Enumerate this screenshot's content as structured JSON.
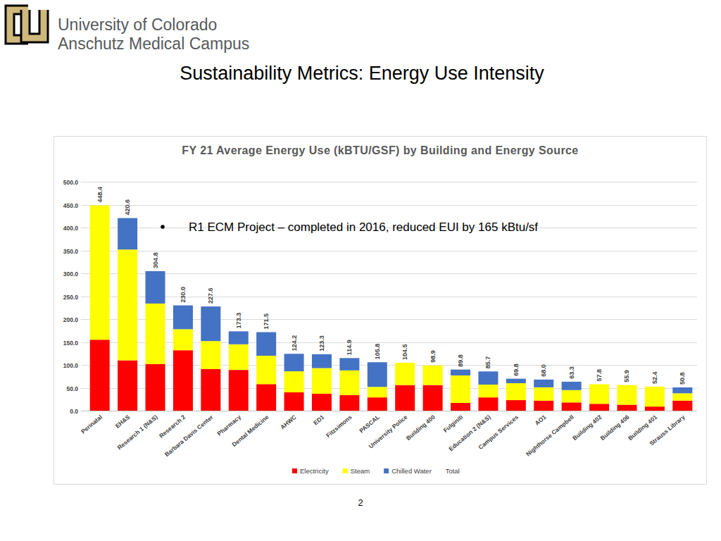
{
  "header": {
    "institution": [
      "University of Colorado",
      "Anschutz Medical Campus"
    ],
    "title": "Sustainability Metrics: Energy Use Intensity",
    "page_number": "2"
  },
  "chart_data": {
    "type": "bar",
    "stacked": true,
    "title": "FY 21 Average Energy Use (kBTU/GSF) by Building and Energy Source",
    "annotations": [
      "R1 ECM Project – completed in 2016, reduced EUI by 165 kBtu/sf"
    ],
    "categories": [
      "Perinatal",
      "EH&S",
      "Research 1 (N&S)",
      "Research 2",
      "Barbara Davis Center",
      "Pharmacy",
      "Dental Medicine",
      "AHWC",
      "ED1",
      "Fitzsimons",
      "PASCAL",
      "University Police",
      "Building 400",
      "Fulginiti",
      "Education 2 (N&S)",
      "Campus Services",
      "AO1",
      "Nighthorse Campbell",
      "Building 402",
      "Building 406",
      "Building 401",
      "Strauss Library"
    ],
    "series": [
      {
        "name": "Electricity",
        "color": "#ff0000",
        "values": [
          155,
          110,
          102,
          132,
          91,
          89,
          58,
          40,
          37,
          34,
          29,
          56,
          56,
          17,
          29,
          23,
          22,
          18,
          15,
          13,
          9,
          22
        ]
      },
      {
        "name": "Steam",
        "color": "#ffff00",
        "values": [
          293.4,
          242,
          132,
          46,
          61,
          56,
          62,
          46,
          56,
          54,
          23,
          48.5,
          42.9,
          60,
          28,
          37,
          29,
          27,
          42.8,
          42.9,
          43.4,
          16
        ]
      },
      {
        "name": "Chilled Water",
        "color": "#4472c4",
        "values": [
          0,
          68.6,
          70.8,
          52,
          75.6,
          28.3,
          51.5,
          38.2,
          30.3,
          26.9,
          53.8,
          0,
          0,
          12.8,
          28.7,
          9.8,
          17,
          18.3,
          0,
          0,
          0,
          12.8
        ]
      },
      {
        "name": "Total",
        "type": "label",
        "values": [
          448.4,
          420.6,
          304.8,
          230.0,
          227.6,
          173.3,
          171.5,
          124.2,
          123.3,
          114.9,
          105.8,
          104.5,
          98.9,
          89.8,
          85.7,
          69.8,
          68.0,
          63.3,
          57.8,
          55.9,
          52.4,
          50.8
        ],
        "value_labels": [
          "448.4",
          "420.6",
          "304.8",
          "230.0",
          "227.6",
          "173.3",
          "171.5",
          "124.2",
          "123.3",
          "114.9",
          "105.8",
          "104.5",
          "98.9",
          "89.8",
          "85.7",
          "69.8",
          "68.0",
          "63.3",
          "57.8",
          "55.9",
          "52.4",
          "50.8"
        ]
      }
    ],
    "ylim": [
      0,
      500
    ],
    "yticks": [
      {
        "value": 0,
        "label": "0.0"
      },
      {
        "value": 50,
        "label": "50.0"
      },
      {
        "value": 100,
        "label": "100.0"
      },
      {
        "value": 150,
        "label": "150.0"
      },
      {
        "value": 200,
        "label": "200.0"
      },
      {
        "value": 250,
        "label": "250.0"
      },
      {
        "value": 300,
        "label": "300.0"
      },
      {
        "value": 350,
        "label": "350.0"
      },
      {
        "value": 400,
        "label": "400.0"
      },
      {
        "value": 450,
        "label": "450.0"
      },
      {
        "value": 500,
        "label": "500.0"
      }
    ],
    "grid": true,
    "legend": "bottom"
  }
}
